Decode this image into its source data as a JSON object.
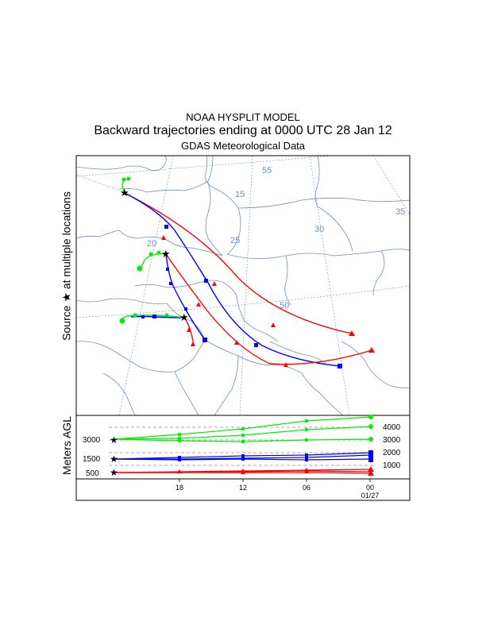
{
  "header": {
    "line1": "NOAA HYSPLIT MODEL",
    "line2": "Backward trajectories ending at 0000 UTC 28 Jan 12",
    "line3": "GDAS Meteorological Data"
  },
  "map": {
    "ylabel": "Source ★ at multiple locations",
    "lat_labels": [
      "55",
      "50"
    ],
    "lon_labels": [
      "15",
      "20",
      "25",
      "30",
      "35"
    ]
  },
  "agl": {
    "ylabel": "Meters AGL",
    "left_levels": [
      "3000",
      "1500",
      "500"
    ],
    "right_levels": [
      "4000",
      "3000",
      "2000",
      "1000"
    ],
    "time_ticks": [
      "18",
      "12",
      "06",
      "00"
    ],
    "date_label": "01/27"
  },
  "colors": {
    "red": "#ff0000",
    "blue": "#0000ff",
    "green": "#00ee00",
    "border": "#6a8fbf",
    "grid": "#6a8fbf"
  }
}
